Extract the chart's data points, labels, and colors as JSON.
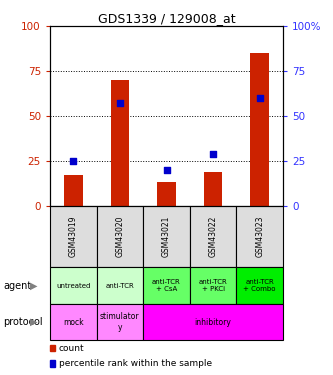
{
  "title": "GDS1339 / 129008_at",
  "samples": [
    "GSM43019",
    "GSM43020",
    "GSM43021",
    "GSM43022",
    "GSM43023"
  ],
  "count_values": [
    17,
    70,
    13,
    19,
    85
  ],
  "percentile_values": [
    25,
    57,
    20,
    29,
    60
  ],
  "agent_labels": [
    "untreated",
    "anti-TCR",
    "anti-TCR\n+ CsA",
    "anti-TCR\n+ PKCi",
    "anti-TCR\n+ Combo"
  ],
  "agent_colors": [
    "#ccffcc",
    "#ccffcc",
    "#66ff66",
    "#66ff66",
    "#00ee00"
  ],
  "protocol_spans": [
    {
      "label": "mock",
      "start": 0,
      "end": 1,
      "color": "#ff88ff"
    },
    {
      "label": "stimulator\ny",
      "start": 1,
      "end": 2,
      "color": "#ff88ff"
    },
    {
      "label": "inhibitory",
      "start": 2,
      "end": 5,
      "color": "#ff00ff"
    }
  ],
  "bar_color": "#cc2200",
  "dot_color": "#0000cc",
  "ylim": [
    0,
    100
  ],
  "yticks_left": [
    0,
    25,
    50,
    75,
    100
  ],
  "ytick_labels_left": [
    "0",
    "25",
    "50",
    "75",
    "100"
  ],
  "ytick_labels_right": [
    "0",
    "25",
    "50",
    "75",
    "100%"
  ],
  "grid_lines": [
    25,
    50,
    75
  ],
  "left_axis_color": "#cc2200",
  "right_axis_color": "#3333ff",
  "sample_bg": "#dddddd",
  "legend_items": [
    {
      "color": "#cc2200",
      "label": "count"
    },
    {
      "color": "#0000cc",
      "label": "percentile rank within the sample"
    }
  ]
}
